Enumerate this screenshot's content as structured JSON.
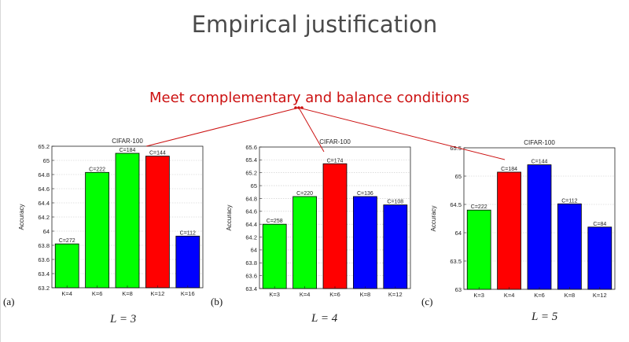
{
  "slide": {
    "title": "Empirical justification",
    "annotation": "Meet complementary and balance conditions"
  },
  "panels": [
    {
      "tag": "(a)",
      "L_label": "L = 3"
    },
    {
      "tag": "(b)",
      "L_label": "L = 4"
    },
    {
      "tag": "(c)",
      "L_label": "L = 5"
    }
  ],
  "colors": {
    "green": "#00ff00",
    "red": "#ff0000",
    "blue": "#0000ff",
    "annotation": "#cc1111"
  },
  "chart_data": [
    {
      "type": "bar",
      "title": "CIFAR-100",
      "ylabel": "Accuracy",
      "ylim": [
        63.2,
        65.2
      ],
      "yticks": [
        "63.2",
        "63.4",
        "63.6",
        "63.8",
        "64",
        "64.2",
        "64.4",
        "64.6",
        "64.8",
        "65",
        "65.2"
      ],
      "categories": [
        "K=4",
        "K=6",
        "K=8",
        "K=12",
        "K=16"
      ],
      "values": [
        63.82,
        64.83,
        65.1,
        65.06,
        63.93
      ],
      "data_labels": [
        "C=272",
        "C=222",
        "C=184",
        "C=144",
        "C=112"
      ],
      "bar_colors": [
        "green",
        "green",
        "green",
        "red",
        "blue"
      ],
      "grid": true
    },
    {
      "type": "bar",
      "title": "CIFAR-100",
      "ylabel": "Accuracy",
      "ylim": [
        63.4,
        65.6
      ],
      "yticks": [
        "63.4",
        "63.6",
        "63.8",
        "64",
        "64.2",
        "64.4",
        "64.6",
        "64.8",
        "65",
        "65.2",
        "65.4",
        "65.6"
      ],
      "categories": [
        "K=3",
        "K=4",
        "K=6",
        "K=8",
        "K=12"
      ],
      "values": [
        64.4,
        64.83,
        65.34,
        64.83,
        64.7
      ],
      "data_labels": [
        "C=258",
        "C=220",
        "C=174",
        "C=136",
        "C=108"
      ],
      "bar_colors": [
        "green",
        "green",
        "red",
        "blue",
        "blue"
      ],
      "grid": true
    },
    {
      "type": "bar",
      "title": "CIFAR-100",
      "ylabel": "Accuracy",
      "ylim": [
        63.0,
        65.5
      ],
      "yticks": [
        "63",
        "63.5",
        "64",
        "64.5",
        "65",
        "65.5"
      ],
      "categories": [
        "K=3",
        "K=4",
        "K=6",
        "K=8",
        "K=12"
      ],
      "values": [
        64.4,
        65.07,
        65.2,
        64.51,
        64.1
      ],
      "data_labels": [
        "C=222",
        "C=184",
        "C=144",
        "C=112",
        "C=84"
      ],
      "bar_colors": [
        "green",
        "red",
        "blue",
        "blue",
        "blue"
      ],
      "grid": true
    }
  ]
}
